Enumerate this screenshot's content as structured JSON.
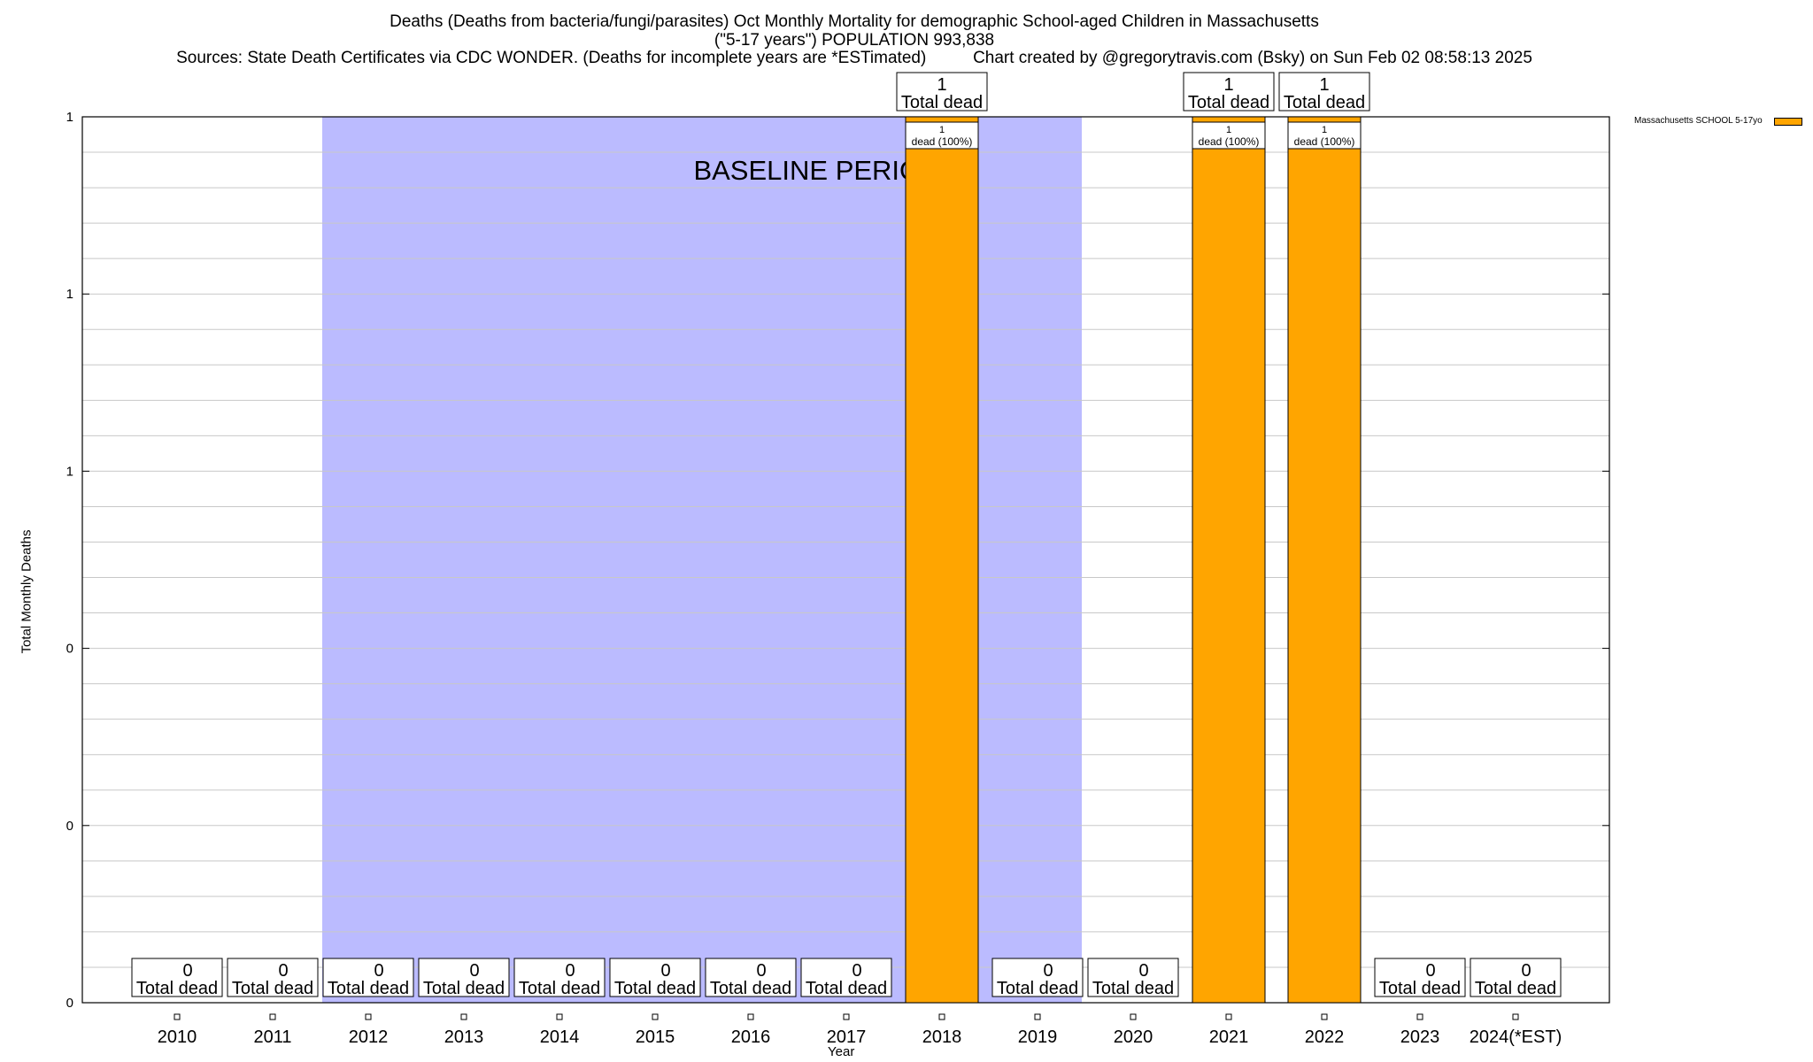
{
  "chart_data": {
    "type": "bar",
    "title_lines": [
      "Deaths (Deaths from bacteria/fungi/parasites) Oct Monthly Mortality for demographic School-aged Children in Massachusetts",
      "(\"5-17 years\") POPULATION 993,838",
      "Sources: State Death Certificates via CDC WONDER. (Deaths for incomplete years are *ESTimated)          Chart created by @gregorytravis.com (Bsky) on Sun Feb 02 08:58:13 2025"
    ],
    "xlabel": "Year",
    "ylabel": "Total Monthly Deaths",
    "categories": [
      "2010",
      "2011",
      "2012",
      "2013",
      "2014",
      "2015",
      "2016",
      "2017",
      "2018",
      "2019",
      "2020",
      "2021",
      "2022",
      "2023",
      "2024(*EST)"
    ],
    "series": [
      {
        "name": "Massachusetts SCHOOL 5-17yo",
        "color": "#ffa500",
        "values": [
          0,
          0,
          0,
          0,
          0,
          0,
          0,
          0,
          1,
          0,
          0,
          1,
          1,
          0,
          0
        ]
      }
    ],
    "ylim": [
      0,
      1
    ],
    "ytick_values": [
      0,
      0.2,
      0.4,
      0.6,
      0.8,
      1
    ],
    "ytick_labels": [
      "0",
      "0",
      "0",
      "1",
      "1",
      "1"
    ],
    "total_label_word": "Total dead",
    "segment_labels": [
      "1",
      "dead (100%)"
    ],
    "baseline": {
      "label": "BASELINE PERIOD",
      "start": "2012",
      "end": "2019",
      "color": "#bbbbff"
    },
    "grid": true,
    "legend_position": "top-right"
  }
}
